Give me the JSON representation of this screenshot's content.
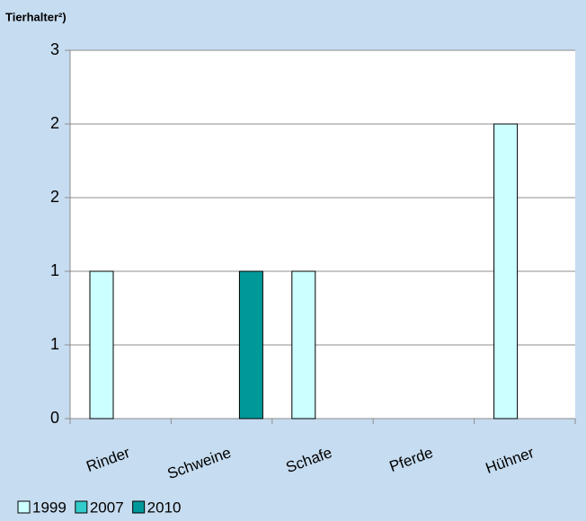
{
  "chart_data": {
    "type": "bar",
    "title": "Tierhalter²)",
    "categories": [
      "Rinder",
      "Schweine",
      "Schafe",
      "Pferde",
      "Hühner"
    ],
    "series": [
      {
        "name": "1999",
        "color": "#ccffff",
        "values": [
          1.2,
          0,
          1.2,
          0,
          2.4
        ]
      },
      {
        "name": "2007",
        "color": "#33cccc",
        "values": [
          0,
          0,
          0,
          0,
          0
        ]
      },
      {
        "name": "2010",
        "color": "#009999",
        "values": [
          0,
          1.2,
          0,
          0,
          0
        ]
      }
    ],
    "ylim": [
      0,
      3
    ],
    "yticks": [
      0,
      {
        "value": 0.6,
        "label": "1"
      },
      {
        "value": 1.2,
        "label": "1"
      },
      {
        "value": 1.8,
        "label": "2"
      },
      {
        "value": 2.4,
        "label": "2"
      },
      3
    ],
    "grid": true,
    "legend": "bottom-left"
  }
}
